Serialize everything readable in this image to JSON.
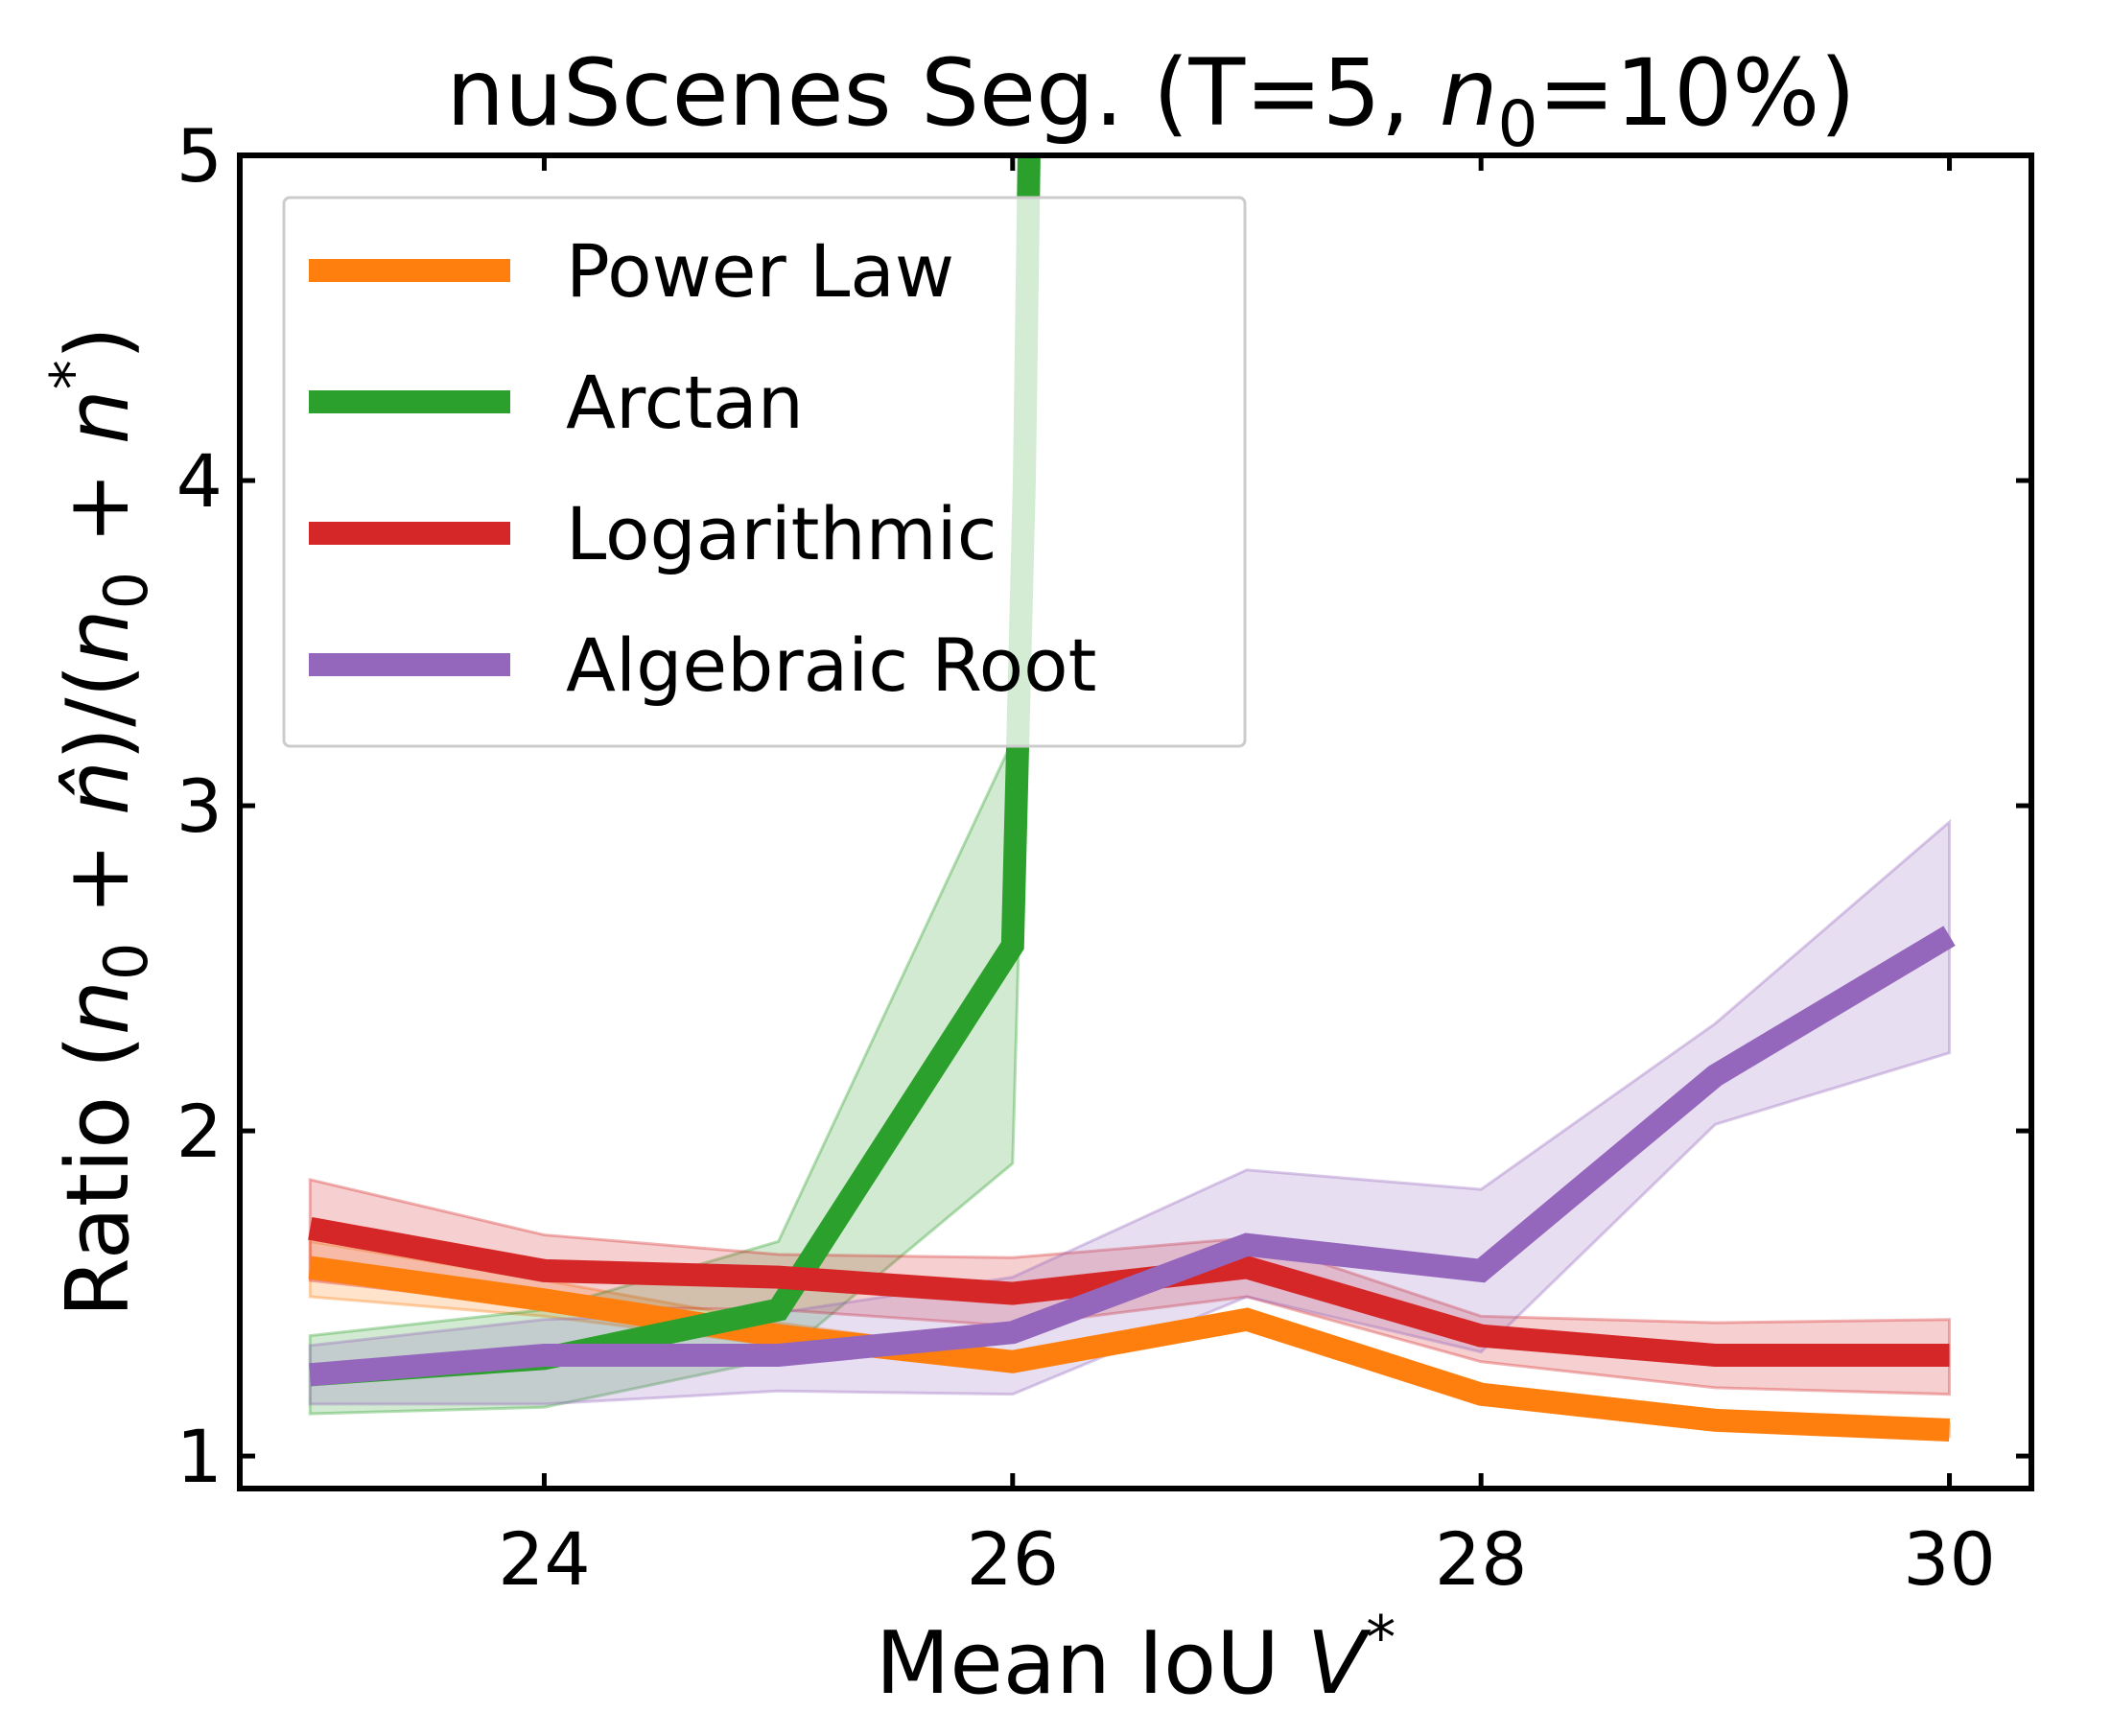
{
  "chart_data": {
    "type": "line",
    "title": "nuScenes Seg. (T=5, n₀=10%)",
    "title_parts": {
      "prefix": "nuScenes Seg. (T=5, ",
      "var": "n",
      "sub": "0",
      "suffix": "=10%)"
    },
    "xlabel": "Mean IoU V*",
    "xlabel_parts": {
      "text": "Mean IoU ",
      "var": "V",
      "sup": "*"
    },
    "ylabel": "Ratio (n₀ + n̂)/(n₀ + n*)",
    "ylabel_parts": {
      "p1": "Ratio (",
      "n": "n",
      "sub": "0",
      "plus": " + ",
      "nhat": "n̂",
      "mid": ")/(",
      "close": ")",
      "star": "*"
    },
    "xlim": [
      22.7,
      30.35
    ],
    "ylim": [
      0.9,
      5.0
    ],
    "xticks": [
      24,
      26,
      28,
      30
    ],
    "yticks": [
      1,
      2,
      3,
      4,
      5
    ],
    "xtick_labels": [
      "24",
      "26",
      "28",
      "30"
    ],
    "ytick_labels": [
      "1",
      "2",
      "3",
      "4",
      "5"
    ],
    "grid": false,
    "legend_position": "upper-left",
    "series": [
      {
        "name": "Power Law",
        "color": "#ff7f0e",
        "x": [
          23,
          24,
          25,
          26,
          27,
          28,
          29,
          30
        ],
        "y": [
          1.58,
          1.48,
          1.37,
          1.29,
          1.42,
          1.19,
          1.11,
          1.08
        ],
        "lower": [
          1.49,
          1.43,
          1.34,
          1.27,
          1.4,
          1.17,
          1.09,
          1.06
        ],
        "upper": [
          1.66,
          1.54,
          1.41,
          1.31,
          1.45,
          1.21,
          1.13,
          1.1
        ]
      },
      {
        "name": "Arctan",
        "color": "#2ca02c",
        "x": [
          23,
          24,
          25,
          26,
          26.05,
          26.1
        ],
        "y": [
          1.25,
          1.3,
          1.45,
          2.57,
          4.0,
          6.5
        ],
        "lower": [
          1.13,
          1.15,
          1.3,
          1.9,
          3.2,
          6.0
        ],
        "upper": [
          1.37,
          1.45,
          1.66,
          3.2,
          5.0,
          7.0
        ]
      },
      {
        "name": "Logarithmic",
        "color": "#d62728",
        "x": [
          23,
          24,
          25,
          26,
          27,
          28,
          29,
          30
        ],
        "y": [
          1.7,
          1.57,
          1.55,
          1.5,
          1.58,
          1.37,
          1.31,
          1.31
        ],
        "lower": [
          1.54,
          1.46,
          1.45,
          1.4,
          1.49,
          1.29,
          1.21,
          1.19
        ],
        "upper": [
          1.85,
          1.68,
          1.62,
          1.61,
          1.67,
          1.43,
          1.41,
          1.42
        ]
      },
      {
        "name": "Algebraic Root",
        "color": "#9467bd",
        "x": [
          23,
          24,
          25,
          26,
          27,
          28,
          29,
          30
        ],
        "y": [
          1.25,
          1.31,
          1.31,
          1.38,
          1.65,
          1.57,
          2.17,
          2.6
        ],
        "lower": [
          1.16,
          1.16,
          1.2,
          1.19,
          1.49,
          1.32,
          2.02,
          2.24
        ],
        "upper": [
          1.34,
          1.42,
          1.44,
          1.55,
          1.88,
          1.82,
          2.33,
          2.95
        ]
      }
    ]
  }
}
